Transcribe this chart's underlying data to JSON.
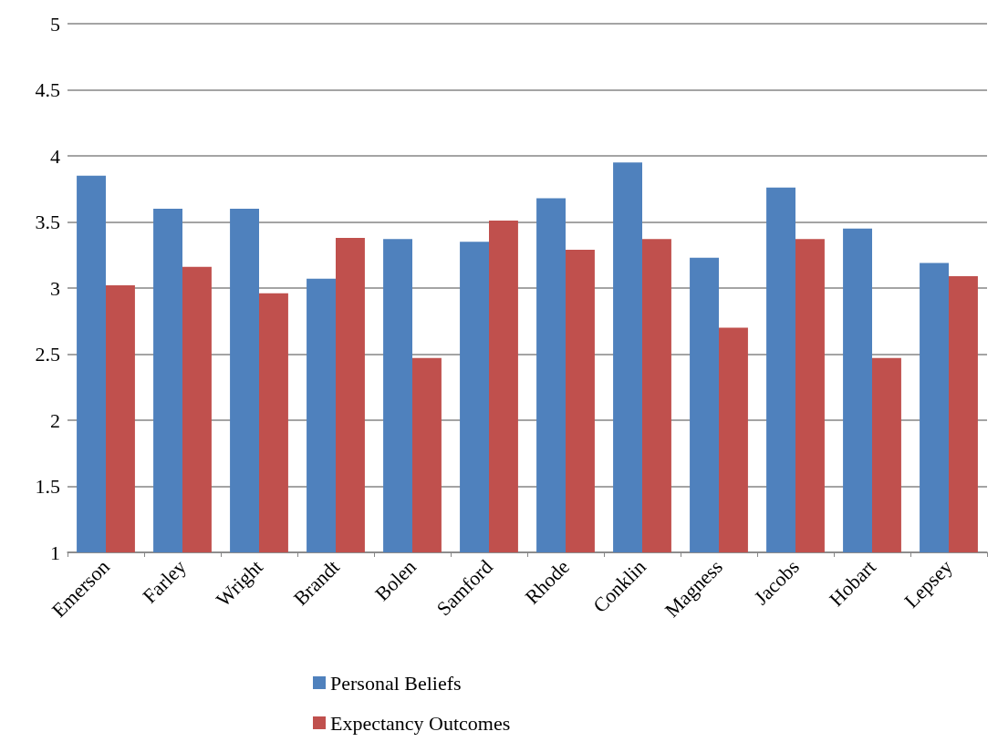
{
  "chart_data": {
    "type": "bar",
    "categories": [
      "Emerson",
      "Farley",
      "Wright",
      "Brandt",
      "Bolen",
      "Samford",
      "Rhode",
      "Conklin",
      "Magness",
      "Jacobs",
      "Hobart",
      "Lepsey"
    ],
    "series": [
      {
        "name": "Personal Beliefs",
        "color": "#4f81bd",
        "values": [
          3.85,
          3.6,
          3.6,
          3.07,
          3.37,
          3.35,
          3.68,
          3.95,
          3.23,
          3.76,
          3.45,
          3.19
        ]
      },
      {
        "name": "Expectancy Outcomes",
        "color": "#c0504d",
        "values": [
          3.02,
          3.16,
          2.96,
          3.38,
          2.47,
          3.51,
          3.29,
          3.37,
          2.7,
          3.37,
          2.47,
          3.09
        ]
      }
    ],
    "ylim": [
      1,
      5
    ],
    "yticks": [
      1,
      1.5,
      2,
      2.5,
      3,
      3.5,
      4,
      4.5,
      5
    ],
    "grid": "y",
    "legend": "bottom"
  }
}
